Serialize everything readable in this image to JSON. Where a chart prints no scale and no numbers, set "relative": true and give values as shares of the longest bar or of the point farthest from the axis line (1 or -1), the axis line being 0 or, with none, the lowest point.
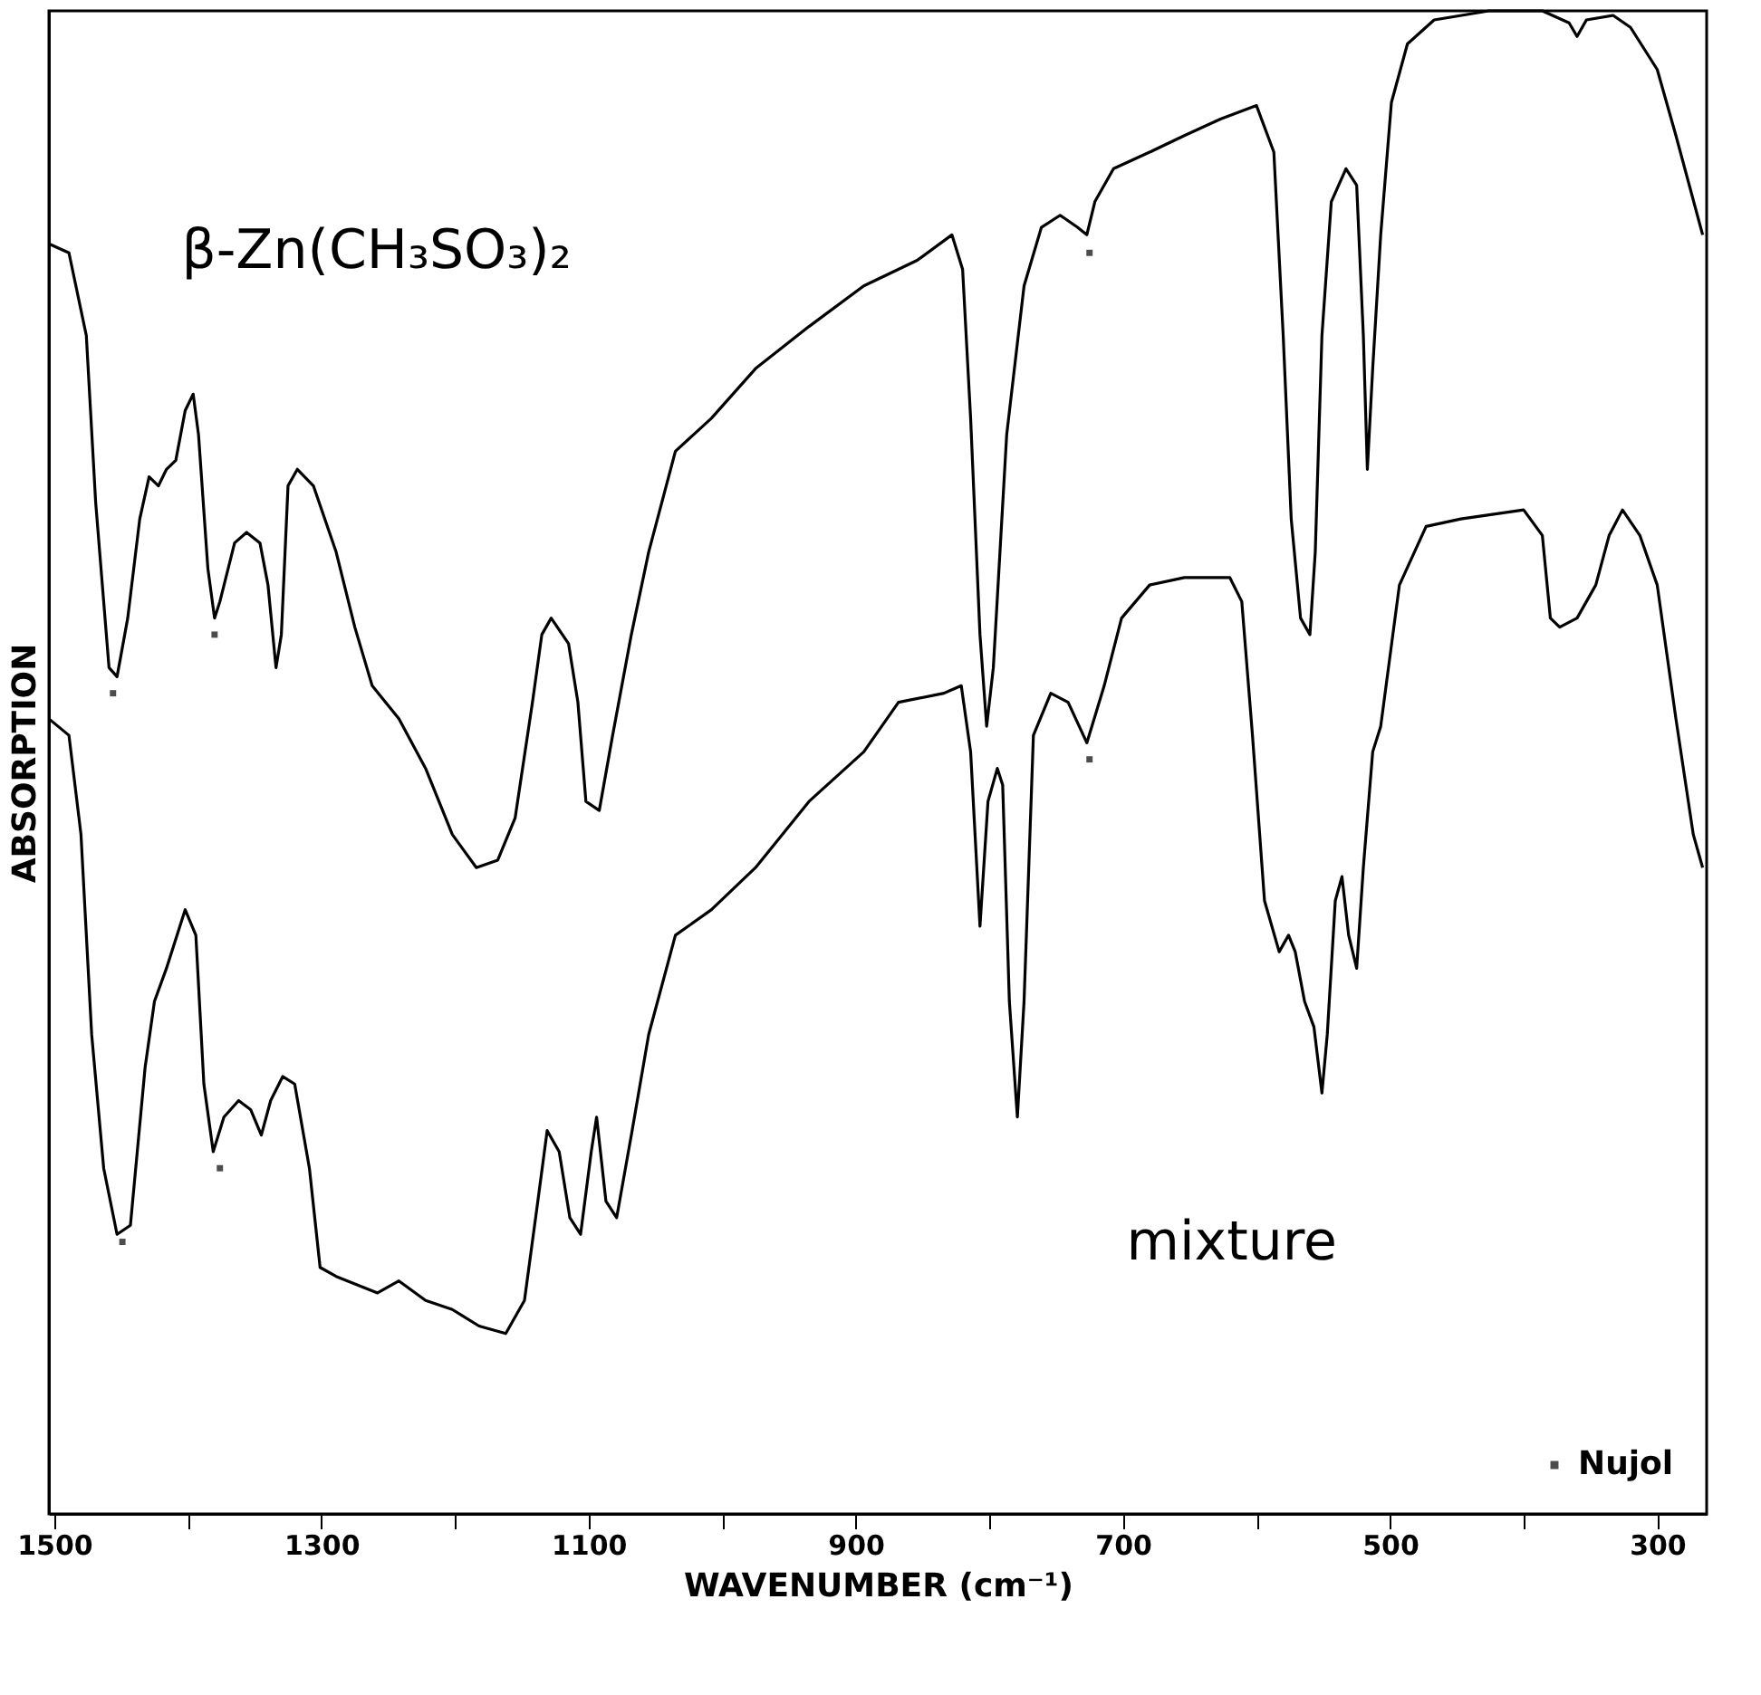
{
  "chart_data": {
    "type": "line",
    "relative": true,
    "xlabel": "WAVENUMBER (cm⁻¹)",
    "ylabel": "ABSORPTION",
    "xlim": [
      1504,
      263
    ],
    "xticks": [
      1500,
      {
        "value": 1400,
        "label": null
      },
      1300,
      {
        "value": 1200,
        "label": null
      },
      1100,
      {
        "value": 1000,
        "label": null
      },
      900,
      {
        "value": 800,
        "label": null
      },
      700,
      {
        "value": 600,
        "label": null
      },
      500,
      {
        "value": 400,
        "label": null
      },
      300
    ],
    "tick_labels": "x",
    "grid": false,
    "legend": "bottom right",
    "line_style": "solid",
    "series": [
      {
        "name": "β-Zn(CH₃SO₃)₂",
        "color": "#000000",
        "marker": "none",
        "x": [
          1504,
          1489,
          1476,
          1469,
          1459,
          1453,
          1445,
          1436,
          1429,
          1422,
          1416,
          1409,
          1402,
          1396,
          1392,
          1385,
          1380,
          1376,
          1365,
          1356,
          1346,
          1340,
          1334,
          1330,
          1325,
          1318,
          1306,
          1289,
          1275,
          1262,
          1242,
          1222,
          1202,
          1184,
          1168,
          1155,
          1142,
          1135,
          1128,
          1115,
          1108,
          1102,
          1092,
          1082,
          1068,
          1055,
          1035,
          1008,
          975,
          935,
          894,
          854,
          828,
          820,
          814,
          807,
          802,
          797,
          787,
          774,
          761,
          747,
          734,
          727,
          721,
          707,
          680,
          654,
          627,
          600,
          587,
          580,
          574,
          567,
          560,
          556,
          551,
          544,
          533,
          525,
          520,
          517,
          513,
          507,
          499,
          487,
          467,
          426,
          386,
          366,
          360,
          353,
          333,
          320,
          300,
          286,
          266
        ],
        "values": [
          0.845,
          0.839,
          0.784,
          0.673,
          0.563,
          0.557,
          0.596,
          0.662,
          0.69,
          0.684,
          0.695,
          0.701,
          0.734,
          0.745,
          0.718,
          0.629,
          0.596,
          0.607,
          0.646,
          0.653,
          0.646,
          0.618,
          0.563,
          0.585,
          0.684,
          0.695,
          0.684,
          0.64,
          0.59,
          0.551,
          0.529,
          0.496,
          0.452,
          0.43,
          0.435,
          0.463,
          0.54,
          0.585,
          0.596,
          0.579,
          0.54,
          0.474,
          0.468,
          0.518,
          0.585,
          0.64,
          0.707,
          0.729,
          0.762,
          0.79,
          0.817,
          0.834,
          0.851,
          0.828,
          0.729,
          0.585,
          0.524,
          0.563,
          0.718,
          0.817,
          0.856,
          0.864,
          0.856,
          0.851,
          0.873,
          0.895,
          0.906,
          0.917,
          0.928,
          0.937,
          0.906,
          0.784,
          0.662,
          0.596,
          0.585,
          0.64,
          0.784,
          0.873,
          0.895,
          0.884,
          0.784,
          0.695,
          0.762,
          0.851,
          0.939,
          0.978,
          0.994,
          1.0,
          1.0,
          0.992,
          0.983,
          0.994,
          0.997,
          0.989,
          0.961,
          0.917,
          0.851
        ]
      },
      {
        "name": "mixture",
        "color": "#000000",
        "marker": "none",
        "x": [
          1504,
          1489,
          1480,
          1472,
          1463,
          1453,
          1443,
          1432,
          1425,
          1416,
          1402,
          1394,
          1388,
          1381,
          1373,
          1362,
          1353,
          1345,
          1338,
          1329,
          1320,
          1309,
          1301,
          1289,
          1275,
          1258,
          1242,
          1222,
          1202,
          1182,
          1162,
          1148,
          1138,
          1131,
          1122,
          1114,
          1106,
          1098,
          1094,
          1087,
          1079,
          1068,
          1055,
          1035,
          1008,
          975,
          935,
          894,
          868,
          834,
          821,
          814,
          807,
          801,
          794,
          790,
          785,
          779,
          774,
          767,
          754,
          741,
          727,
          714,
          701,
          680,
          654,
          620,
          611,
          603,
          594,
          583,
          576,
          571,
          564,
          557,
          551,
          547,
          541,
          536,
          531,
          525,
          520,
          513,
          507,
          493,
          473,
          447,
          400,
          386,
          380,
          373,
          360,
          346,
          336,
          326,
          313,
          300,
          286,
          273,
          266
        ],
        "values": [
          0.529,
          0.518,
          0.452,
          0.319,
          0.23,
          0.186,
          0.192,
          0.297,
          0.341,
          0.363,
          0.402,
          0.385,
          0.286,
          0.241,
          0.264,
          0.275,
          0.269,
          0.252,
          0.275,
          0.291,
          0.286,
          0.23,
          0.164,
          0.158,
          0.153,
          0.147,
          0.155,
          0.142,
          0.136,
          0.125,
          0.12,
          0.142,
          0.208,
          0.255,
          0.241,
          0.197,
          0.186,
          0.241,
          0.264,
          0.208,
          0.197,
          0.252,
          0.319,
          0.385,
          0.402,
          0.43,
          0.474,
          0.507,
          0.54,
          0.546,
          0.551,
          0.507,
          0.391,
          0.474,
          0.496,
          0.485,
          0.341,
          0.264,
          0.341,
          0.518,
          0.546,
          0.54,
          0.513,
          0.551,
          0.596,
          0.618,
          0.623,
          0.623,
          0.607,
          0.518,
          0.408,
          0.374,
          0.385,
          0.374,
          0.341,
          0.324,
          0.28,
          0.319,
          0.408,
          0.424,
          0.385,
          0.363,
          0.43,
          0.507,
          0.524,
          0.618,
          0.657,
          0.662,
          0.668,
          0.651,
          0.596,
          0.59,
          0.596,
          0.618,
          0.651,
          0.668,
          0.651,
          0.618,
          0.529,
          0.452,
          0.43
        ]
      },
      {
        "name": "Nujol",
        "type": "scatter",
        "color": "#000000",
        "marker": "square",
        "x": [
          1456,
          1380,
          725,
          1449,
          1376,
          725
        ],
        "values": [
          0.546,
          0.585,
          0.839,
          0.181,
          0.23,
          0.502
        ]
      }
    ]
  }
}
